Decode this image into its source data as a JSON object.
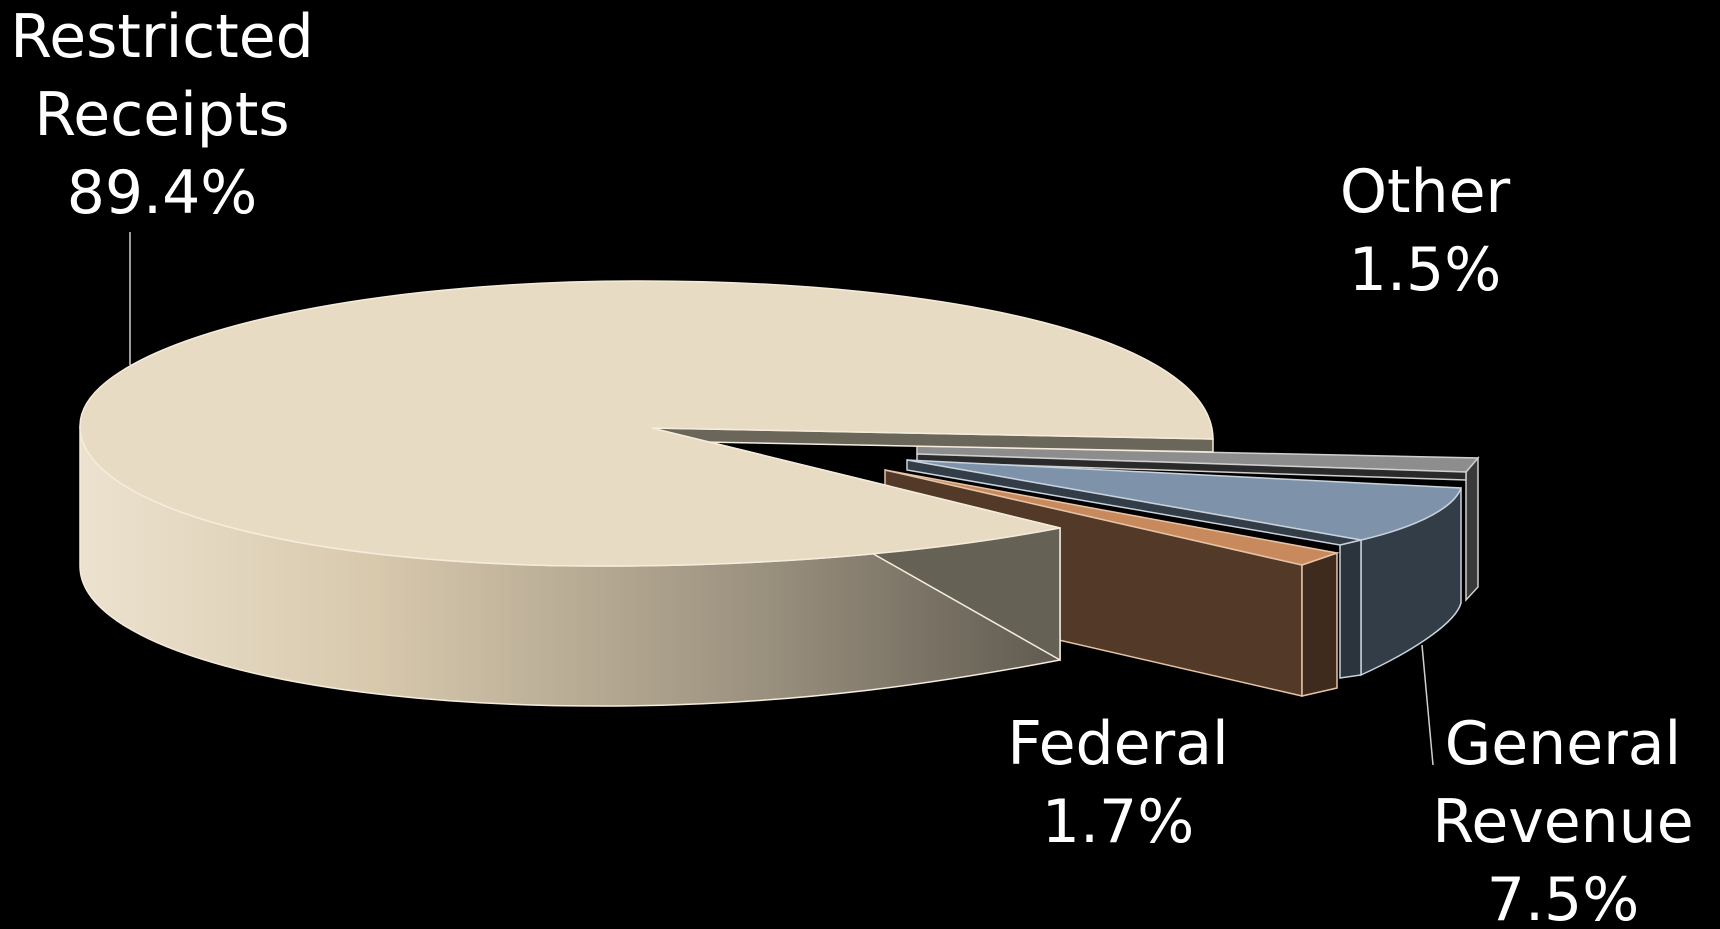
{
  "chart_data": {
    "type": "pie",
    "style": "3d-exploded",
    "title": "",
    "slices": [
      {
        "label": "Restricted Receipts",
        "value": 89.4,
        "display": "89.4%",
        "color": "#e8dbc4",
        "side_color": "#d0c2a8"
      },
      {
        "label": "Federal",
        "value": 1.7,
        "display": "1.7%",
        "color": "#c8895c",
        "side_color": "#533927"
      },
      {
        "label": "General Revenue",
        "value": 7.5,
        "display": "7.5%",
        "color": "#7e93a9",
        "side_color": "#333d47"
      },
      {
        "label": "Other",
        "value": 1.5,
        "display": "1.5%",
        "color": "#8d8d8d",
        "side_color": "#3a3a3a"
      }
    ],
    "labels": {
      "restricted": {
        "line1": "Restricted",
        "line2": "Receipts",
        "pct": "89.4%"
      },
      "other": {
        "line1": "Other",
        "pct": "1.5%"
      },
      "federal": {
        "line1": "Federal",
        "pct": "1.7%"
      },
      "general": {
        "line1": "General",
        "line2": "Revenue",
        "pct": "7.5%"
      }
    },
    "background": "#000000"
  }
}
